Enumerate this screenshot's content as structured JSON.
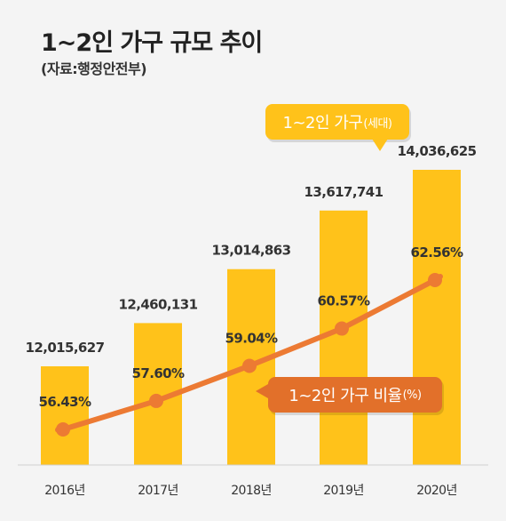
{
  "header": {
    "title": "1~2인 가구 규모 추이",
    "source": "(자료:행정안전부)"
  },
  "callouts": {
    "households_label": "1~2인 가구",
    "households_unit": "(세대)",
    "ratio_label": "1~2인 가구 비율",
    "ratio_unit": "(%)"
  },
  "colors": {
    "bar": "#ffc21a",
    "line": "#ec7a33",
    "marker": "#ec7a33",
    "value_text": "#333333",
    "axis": "#cfcfcf"
  },
  "chart_data": {
    "type": "bar",
    "categories": [
      "2016년",
      "2017년",
      "2018년",
      "2019년",
      "2020년"
    ],
    "series": [
      {
        "name": "1~2인 가구(세대)",
        "type": "bar",
        "values": [
          12015627,
          12460131,
          13014863,
          13617741,
          14036625
        ],
        "labels": [
          "12,015,627",
          "12,460,131",
          "13,014,863",
          "13,617,741",
          "14,036,625"
        ]
      },
      {
        "name": "1~2인 가구 비율(%)",
        "type": "line",
        "values": [
          56.43,
          57.6,
          59.04,
          60.57,
          62.56
        ],
        "labels": [
          "56.43%",
          "57.60%",
          "59.04%",
          "60.57%",
          "62.56%"
        ]
      }
    ],
    "title": "1~2인 가구 규모 추이",
    "grid": false,
    "legend": "callouts"
  }
}
